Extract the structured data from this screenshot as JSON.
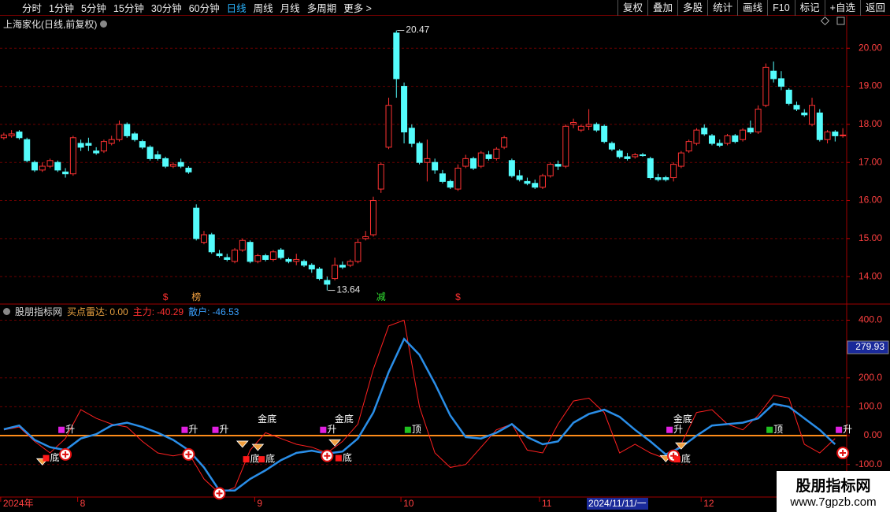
{
  "ui": {
    "toolbar_left": [
      "分时",
      "1分钟",
      "5分钟",
      "15分钟",
      "30分钟",
      "60分钟",
      "日线",
      "周线",
      "月线",
      "多周期",
      "更多 >"
    ],
    "active": "日线",
    "toolbar_right": [
      "复权",
      "叠加",
      "多股",
      "统计",
      "画线",
      "F10",
      "标记",
      "+自选",
      "返回"
    ],
    "cursor_date": "2024/11/11/一",
    "watermark": [
      "股朋指标网",
      "www.7gpzb.com"
    ]
  },
  "chart_data": [
    {
      "type": "candlestick",
      "title": "上海家化(日线,前复权)",
      "up_color": "#ff3232",
      "down_color": "#54fcfc",
      "grid": true,
      "categories": [
        "2024年",
        null,
        null,
        null,
        null,
        null,
        null,
        null,
        null,
        null,
        "8",
        null,
        null,
        null,
        null,
        null,
        null,
        null,
        null,
        null,
        null,
        null,
        null,
        null,
        null,
        null,
        null,
        null,
        null,
        null,
        null,
        null,
        null,
        "9",
        null,
        null,
        null,
        null,
        null,
        null,
        null,
        null,
        null,
        null,
        null,
        null,
        null,
        null,
        null,
        null,
        null,
        null,
        "10",
        null,
        null,
        null,
        null,
        null,
        null,
        null,
        null,
        null,
        null,
        null,
        null,
        null,
        null,
        null,
        null,
        null,
        "11",
        null,
        null,
        null,
        null,
        null,
        null,
        null,
        null,
        null,
        null,
        null,
        null,
        null,
        null,
        null,
        null,
        null,
        null,
        null,
        null,
        "12",
        null,
        null,
        null,
        null,
        null,
        null,
        null,
        null,
        null,
        null,
        null,
        null,
        null,
        null,
        null,
        null,
        null,
        null
      ],
      "ohlc": [
        [
          17.65,
          17.78,
          17.6,
          17.72
        ],
        [
          17.7,
          17.85,
          17.65,
          17.75
        ],
        [
          17.8,
          17.85,
          17.6,
          17.65
        ],
        [
          17.6,
          17.65,
          17.0,
          17.05
        ],
        [
          17.0,
          17.05,
          16.75,
          16.8
        ],
        [
          16.8,
          17.0,
          16.75,
          16.9
        ],
        [
          16.9,
          17.1,
          16.85,
          17.05
        ],
        [
          17.0,
          17.05,
          16.75,
          16.8
        ],
        [
          16.75,
          16.85,
          16.6,
          16.7
        ],
        [
          16.7,
          17.7,
          16.65,
          17.65
        ],
        [
          17.5,
          17.6,
          17.3,
          17.4
        ],
        [
          17.5,
          17.65,
          17.3,
          17.45
        ],
        [
          17.3,
          17.4,
          17.2,
          17.25
        ],
        [
          17.3,
          17.6,
          17.25,
          17.55
        ],
        [
          17.5,
          17.7,
          17.45,
          17.6
        ],
        [
          17.6,
          18.1,
          17.55,
          18.0
        ],
        [
          18.0,
          18.05,
          17.65,
          17.7
        ],
        [
          17.75,
          17.8,
          17.55,
          17.6
        ],
        [
          17.55,
          17.6,
          17.35,
          17.4
        ],
        [
          17.4,
          17.45,
          17.05,
          17.1
        ],
        [
          17.2,
          17.3,
          17.05,
          17.1
        ],
        [
          17.1,
          17.15,
          16.85,
          16.9
        ],
        [
          16.9,
          17.0,
          16.85,
          16.95
        ],
        [
          17.0,
          17.1,
          16.85,
          16.9
        ],
        [
          16.85,
          16.9,
          16.7,
          16.75
        ],
        [
          15.8,
          15.9,
          14.95,
          15.0
        ],
        [
          14.9,
          15.2,
          14.85,
          15.1
        ],
        [
          15.1,
          15.15,
          14.6,
          14.65
        ],
        [
          14.6,
          14.7,
          14.5,
          14.55
        ],
        [
          14.5,
          14.6,
          14.4,
          14.45
        ],
        [
          14.4,
          14.75,
          14.35,
          14.7
        ],
        [
          14.7,
          15.0,
          14.65,
          14.95
        ],
        [
          14.9,
          14.95,
          14.35,
          14.4
        ],
        [
          14.4,
          14.6,
          14.35,
          14.55
        ],
        [
          14.55,
          14.6,
          14.4,
          14.45
        ],
        [
          14.45,
          14.7,
          14.4,
          14.65
        ],
        [
          14.7,
          14.75,
          14.45,
          14.5
        ],
        [
          14.45,
          14.5,
          14.35,
          14.4
        ],
        [
          14.4,
          14.6,
          14.3,
          14.45
        ],
        [
          14.4,
          14.45,
          14.25,
          14.3
        ],
        [
          14.3,
          14.35,
          14.1,
          14.2
        ],
        [
          14.2,
          14.25,
          13.9,
          13.95
        ],
        [
          13.9,
          14.0,
          13.64,
          13.8
        ],
        [
          13.95,
          14.5,
          13.9,
          14.3
        ],
        [
          14.3,
          14.4,
          14.2,
          14.25
        ],
        [
          14.3,
          14.45,
          14.25,
          14.4
        ],
        [
          14.4,
          15.0,
          14.35,
          14.9
        ],
        [
          15.0,
          15.2,
          14.95,
          15.05
        ],
        [
          15.1,
          16.1,
          15.05,
          16.0
        ],
        [
          16.3,
          17.0,
          16.2,
          16.95
        ],
        [
          17.4,
          18.7,
          17.35,
          18.5
        ],
        [
          20.4,
          20.47,
          18.7,
          19.2
        ],
        [
          19.0,
          19.1,
          17.5,
          17.8
        ],
        [
          17.9,
          18.0,
          17.4,
          17.5
        ],
        [
          17.5,
          17.55,
          16.95,
          17.0
        ],
        [
          17.0,
          17.6,
          16.5,
          17.1
        ],
        [
          17.0,
          17.1,
          16.7,
          16.8
        ],
        [
          16.7,
          16.8,
          16.45,
          16.5
        ],
        [
          16.5,
          16.55,
          16.3,
          16.35
        ],
        [
          16.3,
          16.95,
          16.25,
          16.85
        ],
        [
          16.9,
          17.2,
          16.85,
          17.1
        ],
        [
          17.1,
          17.15,
          16.8,
          16.85
        ],
        [
          16.9,
          17.3,
          16.85,
          17.25
        ],
        [
          17.2,
          17.3,
          17.05,
          17.1
        ],
        [
          17.1,
          17.4,
          17.05,
          17.35
        ],
        [
          17.4,
          17.7,
          17.35,
          17.65
        ],
        [
          17.05,
          17.1,
          16.6,
          16.65
        ],
        [
          16.65,
          16.8,
          16.5,
          16.55
        ],
        [
          16.5,
          16.6,
          16.4,
          16.45
        ],
        [
          16.45,
          16.55,
          16.3,
          16.35
        ],
        [
          16.35,
          16.7,
          16.3,
          16.65
        ],
        [
          16.65,
          17.0,
          16.6,
          16.95
        ],
        [
          16.95,
          17.05,
          16.8,
          16.9
        ],
        [
          16.9,
          18.0,
          16.85,
          17.95
        ],
        [
          18.0,
          18.15,
          17.9,
          18.05
        ],
        [
          17.85,
          18.0,
          17.8,
          17.95
        ],
        [
          17.95,
          18.4,
          17.85,
          18.0
        ],
        [
          18.0,
          18.05,
          17.8,
          17.85
        ],
        [
          17.95,
          18.0,
          17.5,
          17.55
        ],
        [
          17.5,
          17.55,
          17.3,
          17.35
        ],
        [
          17.3,
          17.35,
          17.1,
          17.15
        ],
        [
          17.15,
          17.25,
          17.05,
          17.1
        ],
        [
          17.15,
          17.25,
          17.1,
          17.2
        ],
        [
          17.2,
          17.25,
          17.15,
          17.18
        ],
        [
          17.1,
          17.15,
          16.55,
          16.6
        ],
        [
          16.6,
          16.7,
          16.5,
          16.55
        ],
        [
          16.6,
          16.65,
          16.5,
          16.55
        ],
        [
          16.6,
          17.0,
          16.5,
          16.95
        ],
        [
          16.9,
          17.3,
          16.85,
          17.25
        ],
        [
          17.3,
          17.6,
          17.25,
          17.55
        ],
        [
          17.5,
          17.9,
          17.45,
          17.85
        ],
        [
          17.9,
          18.0,
          17.7,
          17.75
        ],
        [
          17.7,
          17.75,
          17.45,
          17.5
        ],
        [
          17.5,
          17.6,
          17.4,
          17.45
        ],
        [
          17.5,
          17.75,
          17.45,
          17.7
        ],
        [
          17.7,
          17.75,
          17.5,
          17.55
        ],
        [
          17.6,
          17.9,
          17.55,
          17.85
        ],
        [
          17.9,
          18.1,
          17.75,
          17.8
        ],
        [
          17.8,
          18.5,
          17.75,
          18.4
        ],
        [
          18.5,
          19.6,
          18.45,
          19.5
        ],
        [
          19.4,
          19.65,
          19.1,
          19.2
        ],
        [
          19.2,
          19.4,
          18.9,
          19.0
        ],
        [
          18.9,
          18.95,
          18.5,
          18.55
        ],
        [
          18.5,
          18.6,
          18.35,
          18.4
        ],
        [
          18.3,
          18.4,
          18.2,
          18.25
        ],
        [
          18.0,
          18.7,
          17.95,
          18.5
        ],
        [
          18.3,
          18.4,
          17.55,
          17.6
        ],
        [
          17.6,
          17.85,
          17.5,
          17.8
        ],
        [
          17.8,
          17.85,
          17.55,
          17.7
        ],
        [
          17.7,
          17.9,
          17.65,
          17.72
        ]
      ],
      "ylim": [
        13.3,
        20.75
      ],
      "yticks": [
        {
          "value": 20,
          "label": "20.00"
        },
        {
          "value": 19,
          "label": "19.00"
        },
        {
          "value": 18,
          "label": "18.00"
        },
        {
          "value": 17,
          "label": "17.00"
        },
        {
          "value": 16,
          "label": "16.00"
        },
        {
          "value": 15,
          "label": "15.00"
        },
        {
          "value": 14,
          "label": "14.00"
        }
      ],
      "extremes": [
        {
          "x": 51,
          "value": 20.47
        },
        {
          "x": 42,
          "value": 13.64
        }
      ],
      "events": [
        {
          "label": "$",
          "x": 21,
          "color": "#ff3030"
        },
        {
          "label": "榜",
          "x": 25,
          "color": "#f0a040"
        },
        {
          "label": "减",
          "x": 49,
          "color": "#30e030"
        },
        {
          "label": "$",
          "x": 59,
          "color": "#ff3030"
        }
      ]
    },
    {
      "type": "line",
      "title": "股朋指标网",
      "readouts": [
        {
          "name": "买点雷达:",
          "value": 0,
          "value_label": "0.00",
          "color": "#e8a040"
        },
        {
          "name": "主力:",
          "value": -40.29,
          "color": "#ff3030"
        },
        {
          "name": "散户:",
          "value": -46.53,
          "color": "#3aa0ff"
        }
      ],
      "xlim": [
        -0.5,
        109.5
      ],
      "x": [
        0,
        2,
        4,
        6,
        8,
        10,
        12,
        14,
        16,
        18,
        20,
        22,
        24,
        26,
        28,
        30,
        32,
        34,
        36,
        38,
        40,
        42,
        44,
        46,
        48,
        50,
        52,
        54,
        56,
        58,
        60,
        62,
        64,
        66,
        68,
        70,
        72,
        74,
        76,
        78,
        80,
        82,
        84,
        86,
        88,
        90,
        92,
        94,
        96,
        98,
        100,
        102,
        104,
        106,
        108
      ],
      "series": [
        {
          "color": "#ff2020",
          "values": [
            20,
            30,
            -20,
            -60,
            -10,
            90,
            60,
            40,
            30,
            -20,
            -60,
            -70,
            -60,
            -150,
            -200,
            -180,
            -50,
            10,
            -10,
            -30,
            -40,
            -60,
            -20,
            40,
            230,
            380,
            400,
            100,
            -60,
            -110,
            -100,
            -40,
            20,
            40,
            -50,
            -60,
            40,
            120,
            130,
            80,
            -60,
            -30,
            -60,
            -80,
            -30,
            80,
            90,
            40,
            20,
            70,
            140,
            130,
            -30,
            -60,
            -10
          ]
        },
        {
          "color": "#2a8ee8",
          "values": [
            22,
            35,
            -15,
            -40,
            -50,
            -10,
            5,
            35,
            45,
            30,
            10,
            -15,
            -50,
            -110,
            -190,
            -190,
            -150,
            -120,
            -85,
            -60,
            -52,
            -62,
            -55,
            -10,
            80,
            220,
            335,
            280,
            180,
            70,
            -5,
            -10,
            10,
            40,
            -5,
            -30,
            -20,
            45,
            75,
            90,
            65,
            20,
            -20,
            -65,
            -40,
            0,
            35,
            40,
            45,
            60,
            110,
            100,
            60,
            20,
            -30
          ]
        }
      ],
      "ylim": [
        -210,
        445
      ],
      "yticks": [
        {
          "value": 400,
          "label": "400.0"
        },
        {
          "value": 200,
          "label": "200.0"
        },
        {
          "value": 100,
          "label": "100.0"
        },
        {
          "value": 0,
          "label": "0.00"
        },
        {
          "value": -100,
          "label": "-100.0"
        }
      ],
      "zero_line_color": "#ff8c1a",
      "cursor_value_label": "279.93",
      "signals": [
        {
          "label": "底",
          "x": 6,
          "y": -78,
          "color": "#ff1a1a"
        },
        {
          "label": "升",
          "x": 8,
          "y": 20,
          "color": "#e020e0"
        },
        {
          "label": "升",
          "x": 24,
          "y": 20,
          "color": "#e020e0"
        },
        {
          "label": "升",
          "x": 28,
          "y": 20,
          "color": "#e020e0"
        },
        {
          "label": "底",
          "x": 32,
          "y": -82,
          "color": "#ff1a1a"
        },
        {
          "label": "底",
          "x": 34,
          "y": -82,
          "color": "#ff1a1a"
        },
        {
          "label": "金底",
          "x": 34,
          "y": 55
        },
        {
          "label": "升",
          "x": 42,
          "y": 20,
          "color": "#e020e0"
        },
        {
          "label": "底",
          "x": 44,
          "y": -78,
          "color": "#ff1a1a"
        },
        {
          "label": "金底",
          "x": 44,
          "y": 55
        },
        {
          "label": "顶",
          "x": 53,
          "y": 20,
          "color": "#20c020"
        },
        {
          "label": "升",
          "x": 87,
          "y": 20,
          "color": "#e020e0"
        },
        {
          "label": "金底",
          "x": 88,
          "y": 55
        },
        {
          "label": "底",
          "x": 88,
          "y": -82,
          "color": "#ff1a1a"
        },
        {
          "label": "顶",
          "x": 100,
          "y": 20,
          "color": "#20c020"
        },
        {
          "label": "升",
          "x": 109,
          "y": 20,
          "color": "#e020e0"
        }
      ],
      "buy_marks": [
        {
          "x": 8,
          "y": -65
        },
        {
          "x": 24,
          "y": -65
        },
        {
          "x": 28,
          "y": -200
        },
        {
          "x": 42,
          "y": -70
        },
        {
          "x": 87,
          "y": -70
        },
        {
          "x": 109,
          "y": -60
        }
      ],
      "diamond_marks": [
        {
          "x": 5,
          "y": -88
        },
        {
          "x": 31,
          "y": -27
        },
        {
          "x": 33,
          "y": -38
        },
        {
          "x": 43,
          "y": -22
        },
        {
          "x": 86,
          "y": -77
        },
        {
          "x": 88,
          "y": -33
        }
      ]
    }
  ]
}
